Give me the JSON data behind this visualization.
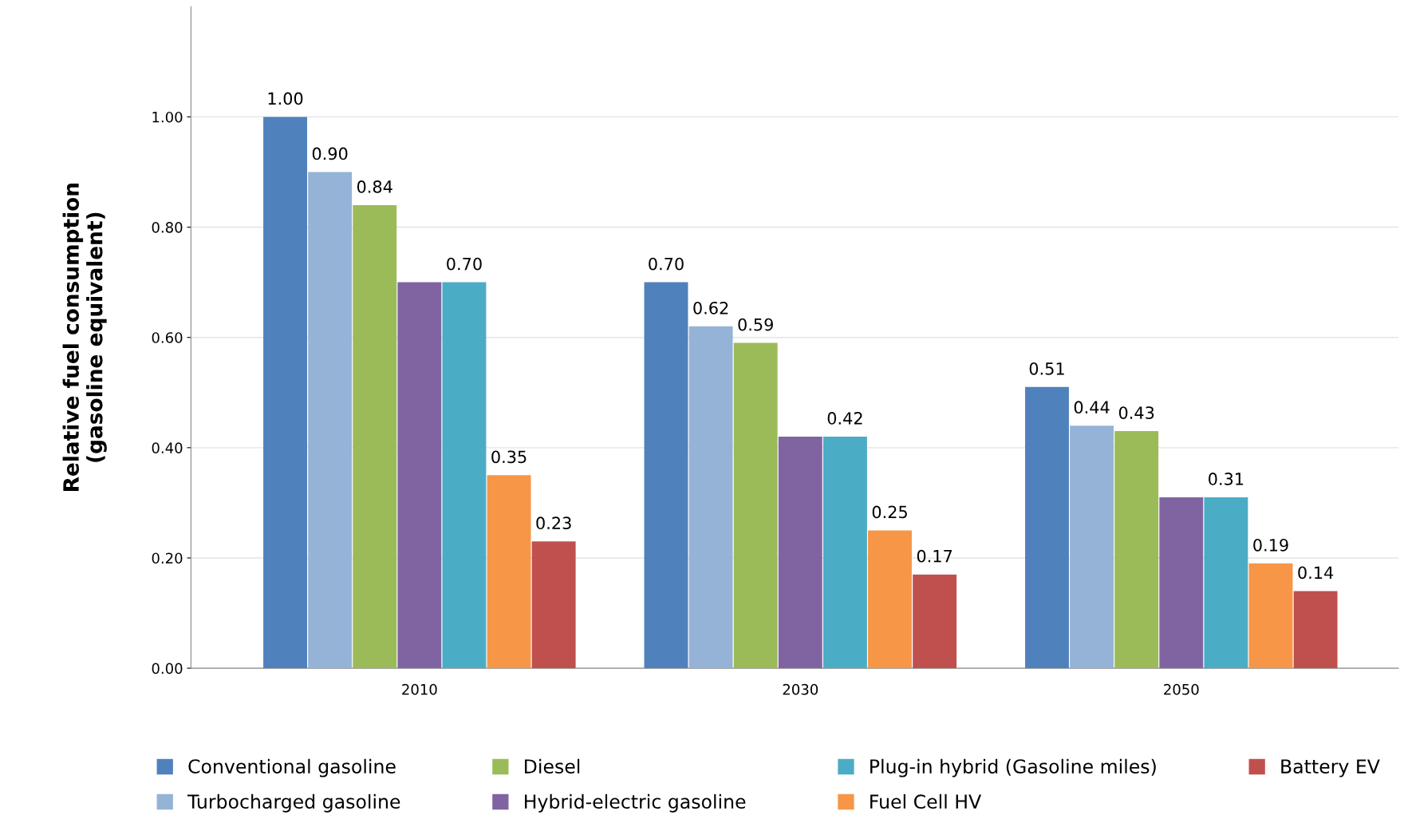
{
  "chart_data": {
    "type": "bar",
    "ylabel": "Relative fuel consumption\n(gasoline equivalent)",
    "categories": [
      "2010",
      "2030",
      "2050"
    ],
    "series": [
      {
        "name": "Conventional gasoline",
        "color": "#4f81bd",
        "values": [
          1.0,
          0.7,
          0.51
        ],
        "value_labels": [
          "1.00",
          "0.70",
          "0.51"
        ]
      },
      {
        "name": "Turbocharged gasoline",
        "color": "#95b3d7",
        "values": [
          0.9,
          0.62,
          0.44
        ],
        "value_labels": [
          "0.90",
          "0.62",
          "0.44"
        ]
      },
      {
        "name": "Diesel",
        "color": "#9bbb59",
        "values": [
          0.84,
          0.59,
          0.43
        ],
        "value_labels": [
          "0.84",
          "0.59",
          "0.43"
        ]
      },
      {
        "name": "Hybrid-electric gasoline",
        "color": "#8064a2",
        "values": [
          0.7,
          0.42,
          0.31
        ],
        "value_labels": [
          null,
          null,
          null
        ]
      },
      {
        "name": "Plug-in hybrid (Gasoline miles)",
        "color": "#4bacc6",
        "values": [
          0.7,
          0.42,
          0.31
        ],
        "value_labels": [
          "0.70",
          "0.42",
          "0.31"
        ]
      },
      {
        "name": "Fuel Cell HV",
        "color": "#f79646",
        "values": [
          0.35,
          0.25,
          0.19
        ],
        "value_labels": [
          "0.35",
          "0.25",
          "0.19"
        ]
      },
      {
        "name": "Battery EV",
        "color": "#c0504d",
        "values": [
          0.23,
          0.17,
          0.14
        ],
        "value_labels": [
          "0.23",
          "0.17",
          "0.14"
        ]
      }
    ],
    "ylim": [
      0,
      1.2
    ],
    "yticks": [
      {
        "value": 0,
        "label": "0.00"
      },
      {
        "value": 0.2,
        "label": "0.20"
      },
      {
        "value": 0.4,
        "label": "0.40"
      },
      {
        "value": 0.6,
        "label": "0.60"
      },
      {
        "value": 0.8,
        "label": "0.80"
      },
      {
        "value": 1.0,
        "label": "1.00"
      }
    ],
    "grid": "y",
    "legend": "bottom"
  }
}
